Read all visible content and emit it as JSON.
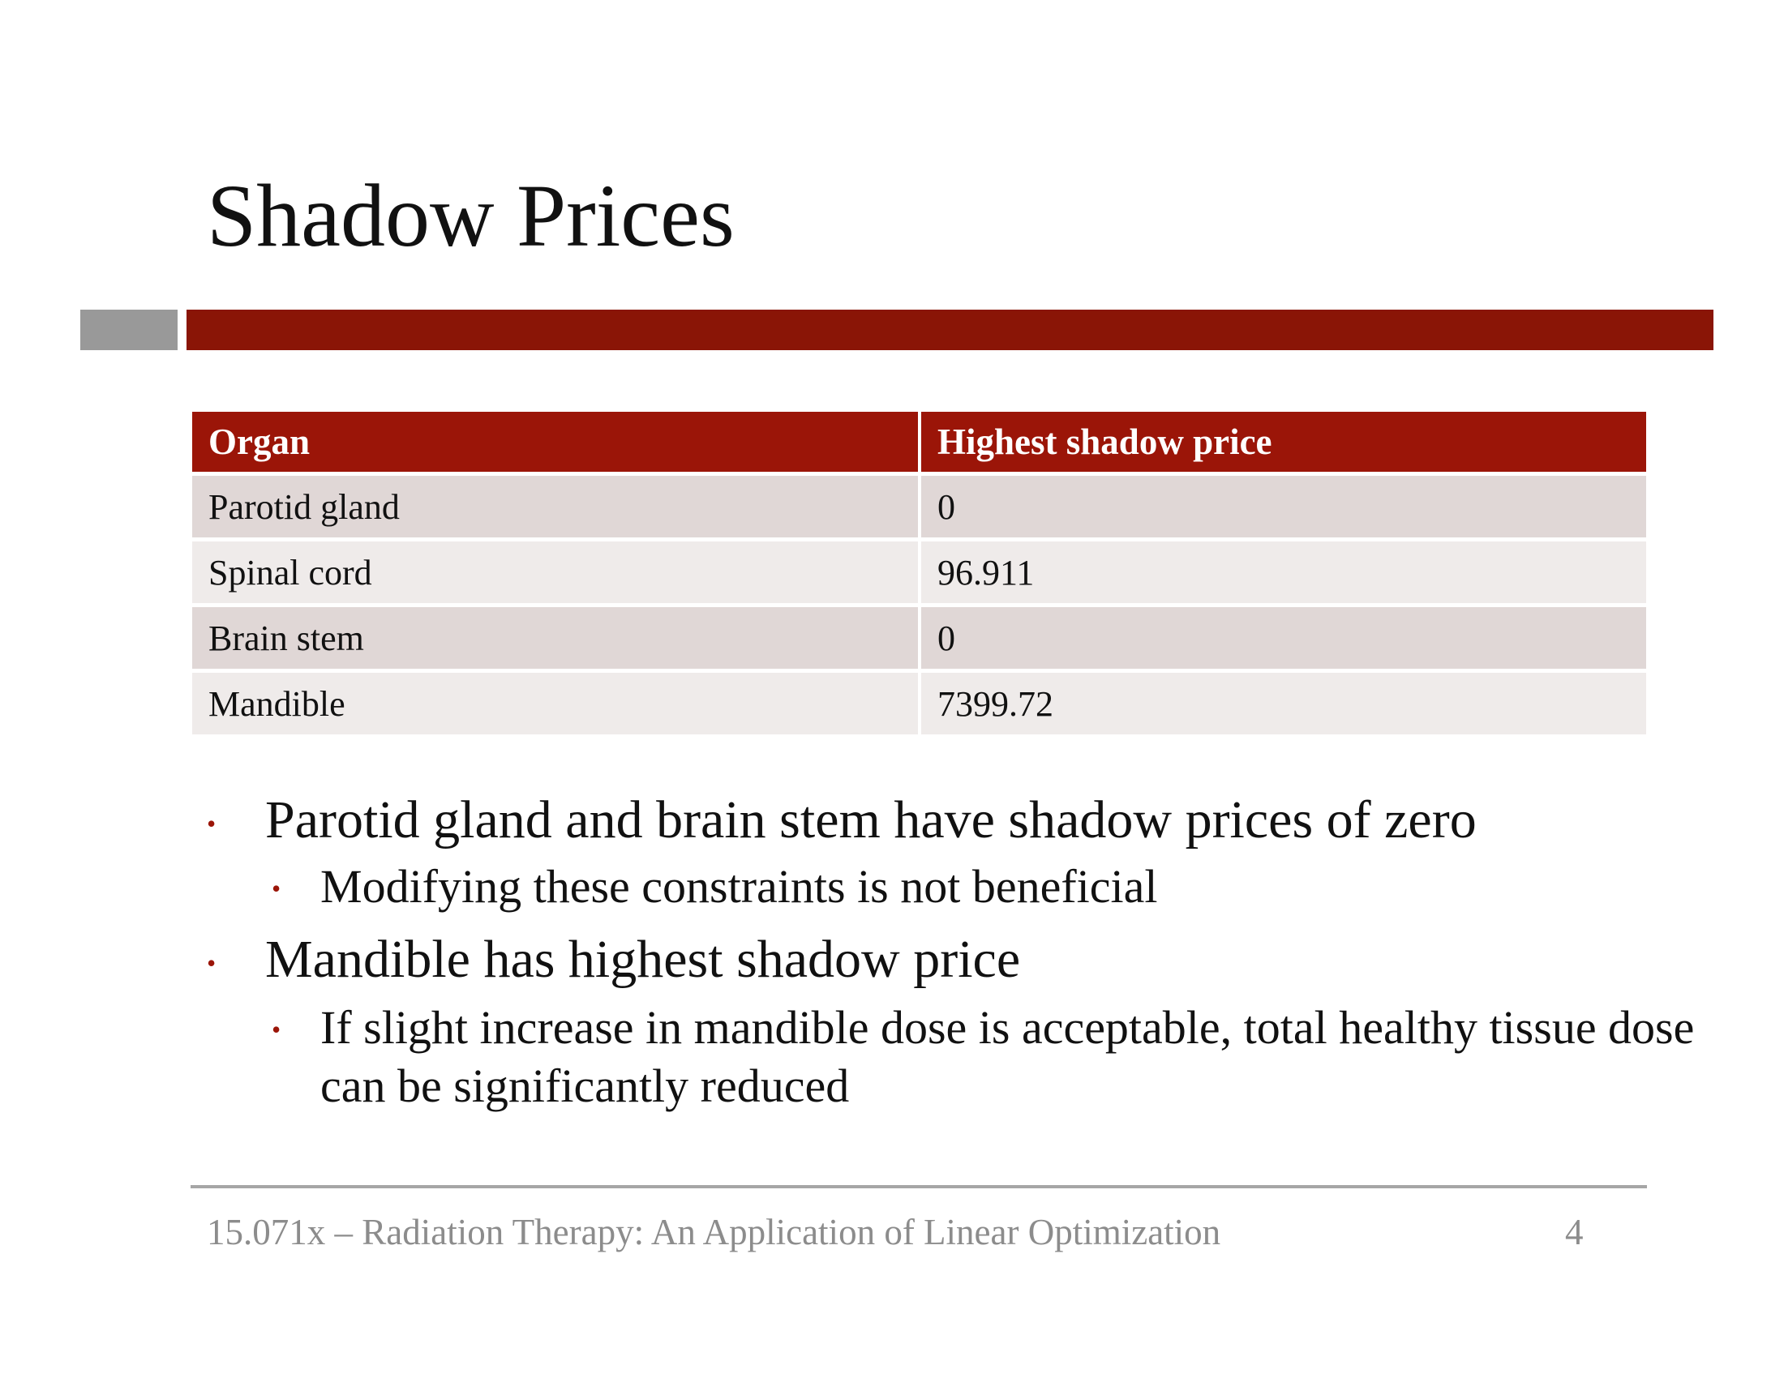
{
  "slide": {
    "title": "Shadow Prices",
    "colors": {
      "accent_red": "#8a1506",
      "header_red": "#9b1508",
      "grey_block": "#999999",
      "row_dark": "#e0d7d6",
      "row_light": "#efebea"
    }
  },
  "table": {
    "headers": [
      "Organ",
      "Highest shadow price"
    ],
    "rows": [
      [
        "Parotid gland",
        "0"
      ],
      [
        "Spinal cord",
        "96.911"
      ],
      [
        "Brain stem",
        "0"
      ],
      [
        "Mandible",
        "7399.72"
      ]
    ]
  },
  "bullets": [
    {
      "text": "Parotid gland and brain stem have shadow prices of  zero",
      "sub": [
        "Modifying these constraints is not beneficial"
      ]
    },
    {
      "text": "Mandible has highest shadow price",
      "sub": [
        "If  slight increase in mandible dose is acceptable, total healthy tissue dose can be significantly reduced"
      ]
    }
  ],
  "bullet_glyph": "•",
  "footer": {
    "text": "15.071x – Radiation Therapy: An Application of  Linear Optimization",
    "page_number": "4"
  }
}
